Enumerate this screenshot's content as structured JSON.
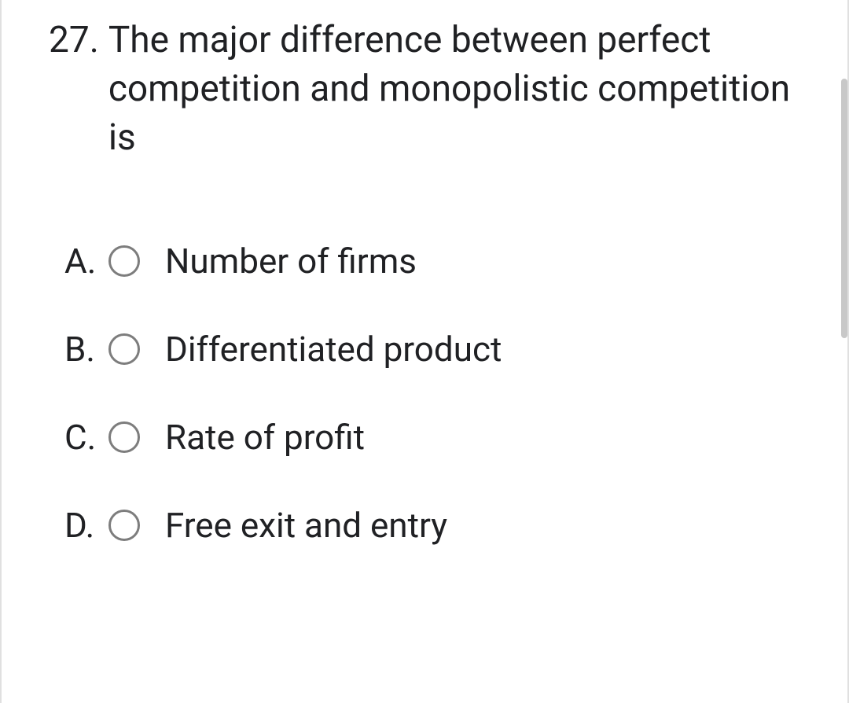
{
  "question": {
    "number": "27.",
    "text": "The major difference between perfect competition and monopolistic competition is"
  },
  "options": [
    {
      "letter": "A.",
      "text": "Number of firms"
    },
    {
      "letter": "B.",
      "text": "Differentiated product"
    },
    {
      "letter": "C.",
      "text": "Rate of profit"
    },
    {
      "letter": "D.",
      "text": "Free exit and entry"
    }
  ],
  "colors": {
    "text": "#202124",
    "border": "#e0e0e0",
    "radio_border": "#7d7d7d",
    "scrollbar": "#c8c8c8",
    "background": "#ffffff"
  },
  "typography": {
    "question_fontsize": 46,
    "option_fontsize": 44,
    "font_family": "Roboto, Arial, sans-serif"
  }
}
